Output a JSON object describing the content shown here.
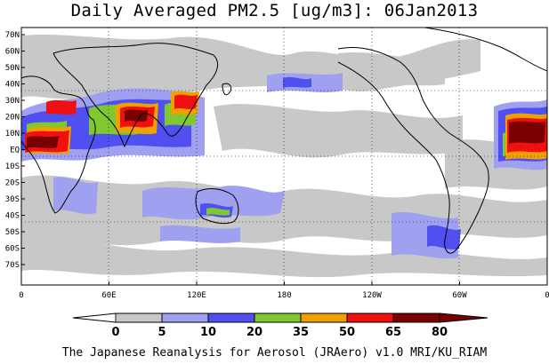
{
  "title": "Daily Averaged PM2.5 [ug/m3]: 06Jan2013",
  "footer": "The Japanese Reanalysis for Aerosol (JRAero) v1.0 MRI/KU_RIAM",
  "lat_labels": [
    "70N",
    "60N",
    "50N",
    "40N",
    "30N",
    "20N",
    "10N",
    "EQ",
    "10S",
    "20S",
    "30S",
    "40S",
    "50S",
    "60S",
    "70S"
  ],
  "lon_labels": [
    "0",
    "60E",
    "120E",
    "180",
    "120W",
    "60W",
    "0"
  ],
  "colorbar": {
    "ticks": [
      "0",
      "5",
      "10",
      "20",
      "35",
      "50",
      "65",
      "80"
    ],
    "colors": [
      "#ffffff",
      "#c8c8c8",
      "#a0a0f0",
      "#5050f0",
      "#80c830",
      "#f0a000",
      "#f01010",
      "#780000"
    ]
  },
  "map": {
    "ocean_color": "#ffffff",
    "coastline_color": "#000000",
    "grid_style": "dotted"
  }
}
